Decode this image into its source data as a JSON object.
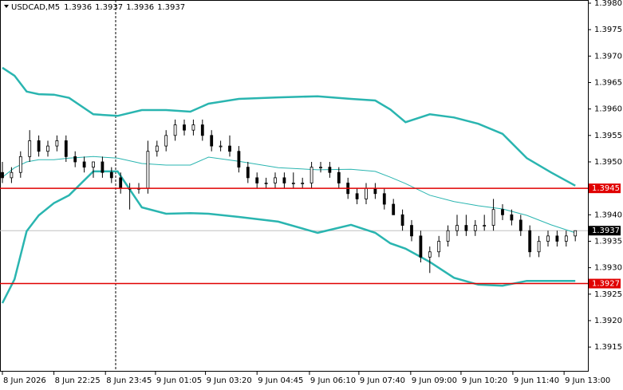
{
  "chart_data": {
    "type": "candlestick",
    "header": {
      "symbol": "USDCAD,M5",
      "ohlc": [
        1.3936,
        1.3937,
        1.3936,
        1.3937
      ]
    },
    "xlim": [
      -0.79,
      193.16
    ],
    "ylim": [
      1.39105,
      1.39806
    ],
    "yticks": [
      {
        "value": 1.398,
        "label": "1.3980"
      },
      {
        "value": 1.3975,
        "label": "1.3975"
      },
      {
        "value": 1.397,
        "label": "1.3970"
      },
      {
        "value": 1.3965,
        "label": "1.3965"
      },
      {
        "value": 1.396,
        "label": "1.3960"
      },
      {
        "value": 1.3955,
        "label": "1.3955"
      },
      {
        "value": 1.395,
        "label": "1.3950"
      },
      {
        "value": 1.394,
        "label": "1.3940"
      },
      {
        "value": 1.3935,
        "label": "1.3935"
      },
      {
        "value": 1.393,
        "label": "1.3930"
      },
      {
        "value": 1.3925,
        "label": "1.3925"
      },
      {
        "value": 1.392,
        "label": "1.3920"
      },
      {
        "value": 1.3915,
        "label": "1.3915"
      }
    ],
    "xticks": [
      {
        "value": 0,
        "label": "8 Jun 2026"
      },
      {
        "value": 17,
        "label": "8 Jun 22:25"
      },
      {
        "value": 34,
        "label": "8 Jun 23:45"
      },
      {
        "value": 50.5,
        "label": "9 Jun 01:05"
      },
      {
        "value": 67,
        "label": "9 Jun 03:20"
      },
      {
        "value": 84,
        "label": "9 Jun 04:45"
      },
      {
        "value": 101.3,
        "label": "9 Jun 06:10"
      },
      {
        "value": 117.6,
        "label": "9 Jun 07:40"
      },
      {
        "value": 134.7,
        "label": "9 Jun 09:00"
      },
      {
        "value": 151.3,
        "label": "9 Jun 10:20"
      },
      {
        "value": 168.4,
        "label": "9 Jun 11:40"
      },
      {
        "value": 185.3,
        "label": "9 Jun 13:00"
      }
    ],
    "levels": [
      {
        "value": 1.3945,
        "color": "#e00000"
      },
      {
        "value": 1.3927,
        "color": "#e00000"
      }
    ],
    "current_price": {
      "value": 1.3937,
      "color": "#000000"
    },
    "candle_colors": {
      "up": "#ffffff",
      "down": "#000000",
      "outline": "#000000"
    },
    "candles": {
      "x": [
        0,
        3,
        6,
        9,
        12,
        15,
        18,
        21,
        24,
        27,
        30,
        33,
        36,
        39,
        42,
        45,
        48,
        51,
        54,
        57,
        60,
        63,
        66,
        69,
        72,
        75,
        78,
        81,
        84,
        87,
        90,
        93,
        96,
        99,
        102,
        105,
        108,
        111,
        114,
        117,
        120,
        123,
        126,
        129,
        132,
        135,
        138,
        141,
        144,
        147,
        150,
        153,
        156,
        159,
        162,
        165,
        168,
        171,
        174,
        177,
        180,
        183,
        186,
        189
      ],
      "open": [
        1.3948,
        1.3947,
        1.3948,
        1.3951,
        1.3954,
        1.3952,
        1.3953,
        1.3954,
        1.3951,
        1.395,
        1.3949,
        1.395,
        1.3948,
        1.3947,
        1.3945,
        1.3945,
        1.3945,
        1.3952,
        1.3953,
        1.3955,
        1.3957,
        1.3956,
        1.3957,
        1.3955,
        1.3953,
        1.3953,
        1.3952,
        1.3949,
        1.3947,
        1.3946,
        1.3946,
        1.3947,
        1.3946,
        1.3946,
        1.3946,
        1.3949,
        1.3949,
        1.3948,
        1.3946,
        1.3944,
        1.3943,
        1.3945,
        1.3944,
        1.3942,
        1.394,
        1.3938,
        1.3936,
        1.3932,
        1.3933,
        1.3935,
        1.3937,
        1.3938,
        1.3937,
        1.3938,
        1.3938,
        1.3941,
        1.394,
        1.3939,
        1.3937,
        1.3933,
        1.3935,
        1.3936,
        1.3935,
        1.3936
      ],
      "high": [
        1.395,
        1.3949,
        1.3952,
        1.3956,
        1.3955,
        1.3954,
        1.3955,
        1.3955,
        1.3952,
        1.3951,
        1.395,
        1.3951,
        1.3949,
        1.3948,
        1.3946,
        1.3946,
        1.3954,
        1.3954,
        1.3956,
        1.3958,
        1.3958,
        1.3958,
        1.3958,
        1.3956,
        1.3954,
        1.3955,
        1.3953,
        1.395,
        1.3948,
        1.3947,
        1.3948,
        1.3948,
        1.3948,
        1.3947,
        1.395,
        1.395,
        1.395,
        1.3949,
        1.3947,
        1.3945,
        1.3946,
        1.3946,
        1.3945,
        1.3943,
        1.3941,
        1.3939,
        1.3937,
        1.3934,
        1.3936,
        1.3938,
        1.394,
        1.394,
        1.3939,
        1.394,
        1.3943,
        1.3942,
        1.3941,
        1.394,
        1.3938,
        1.3936,
        1.3937,
        1.3937,
        1.3937,
        1.3937
      ],
      "low": [
        1.3946,
        1.3946,
        1.3947,
        1.395,
        1.3951,
        1.3951,
        1.3952,
        1.395,
        1.3949,
        1.3948,
        1.3947,
        1.3947,
        1.3946,
        1.3944,
        1.3941,
        1.3944,
        1.3944,
        1.3951,
        1.3952,
        1.3954,
        1.3955,
        1.3955,
        1.3954,
        1.3952,
        1.3952,
        1.3951,
        1.3948,
        1.3946,
        1.3945,
        1.3945,
        1.3945,
        1.3945,
        1.3945,
        1.3945,
        1.3945,
        1.3948,
        1.3947,
        1.3945,
        1.3943,
        1.3942,
        1.3942,
        1.3943,
        1.3941,
        1.394,
        1.3937,
        1.3935,
        1.3931,
        1.3929,
        1.3932,
        1.3934,
        1.3936,
        1.3936,
        1.3936,
        1.3937,
        1.3937,
        1.3939,
        1.3938,
        1.3936,
        1.3932,
        1.3932,
        1.3934,
        1.3934,
        1.3934,
        1.3935
      ],
      "close": [
        1.3947,
        1.3948,
        1.3951,
        1.3954,
        1.3952,
        1.3953,
        1.3954,
        1.3951,
        1.395,
        1.3949,
        1.395,
        1.3948,
        1.3947,
        1.3945,
        1.3945,
        1.3945,
        1.3952,
        1.3953,
        1.3955,
        1.3957,
        1.3956,
        1.3957,
        1.3955,
        1.3953,
        1.3953,
        1.3952,
        1.3949,
        1.3947,
        1.3946,
        1.3946,
        1.3947,
        1.3946,
        1.3946,
        1.3946,
        1.3949,
        1.3949,
        1.3948,
        1.3946,
        1.3944,
        1.3943,
        1.3945,
        1.3944,
        1.3942,
        1.394,
        1.3938,
        1.3936,
        1.3932,
        1.3933,
        1.3935,
        1.3937,
        1.3938,
        1.3937,
        1.3938,
        1.3938,
        1.3941,
        1.394,
        1.3939,
        1.3937,
        1.3933,
        1.3935,
        1.3936,
        1.3935,
        1.3936,
        1.3937
      ]
    },
    "bands": {
      "x": [
        0,
        4,
        8,
        12,
        17,
        22,
        30,
        38,
        46,
        54,
        62,
        68,
        78,
        91,
        104,
        115,
        123,
        128,
        133,
        141,
        149,
        157,
        165,
        173,
        181,
        189
      ],
      "series": [
        {
          "color": "#2ab5b0",
          "width": 2.5,
          "values": [
            1.39678,
            1.39663,
            1.39633,
            1.39628,
            1.39627,
            1.39621,
            1.3959,
            1.39587,
            1.39598,
            1.39598,
            1.39595,
            1.3961,
            1.39619,
            1.39622,
            1.39624,
            1.39619,
            1.39616,
            1.39599,
            1.39575,
            1.3959,
            1.39584,
            1.39572,
            1.39553,
            1.39507,
            1.3948,
            1.39455
          ]
        },
        {
          "color": "#2ab5b0",
          "width": 1,
          "values": [
            1.39471,
            1.39489,
            1.395,
            1.39504,
            1.39504,
            1.39507,
            1.3951,
            1.39507,
            1.39497,
            1.39494,
            1.39494,
            1.39509,
            1.39501,
            1.39489,
            1.39485,
            1.39486,
            1.39482,
            1.39471,
            1.39459,
            1.39437,
            1.39425,
            1.39417,
            1.39411,
            1.39399,
            1.39381,
            1.39366
          ]
        },
        {
          "color": "#2ab5b0",
          "width": 2.5,
          "values": [
            1.39233,
            1.39278,
            1.39369,
            1.39399,
            1.39422,
            1.39437,
            1.39482,
            1.39482,
            1.39414,
            1.39402,
            1.39403,
            1.39402,
            1.39396,
            1.39387,
            1.39366,
            1.39381,
            1.39366,
            1.39346,
            1.39336,
            1.39311,
            1.39281,
            1.39268,
            1.39266,
            1.39275,
            1.39275,
            1.39275
          ]
        }
      ]
    }
  }
}
